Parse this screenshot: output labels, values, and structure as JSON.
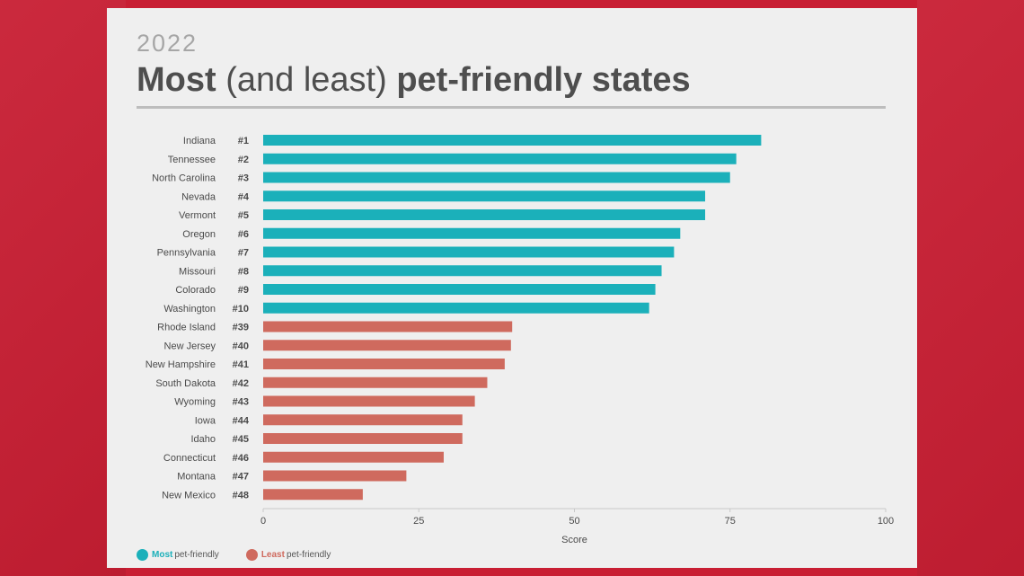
{
  "header": {
    "year": "2022",
    "title_most": "Most",
    "title_middle": "(and least)",
    "title_end": "pet-friendly states"
  },
  "legend": {
    "most_strong": "Most",
    "least_strong": "Least",
    "suffix": "pet-friendly"
  },
  "colors": {
    "most": "#1bb0ba",
    "least": "#cf6a5e",
    "label": "#4a4a4a",
    "axis": "#c8c8c8"
  },
  "chart_data": {
    "type": "bar",
    "orientation": "horizontal",
    "title": "Most (and least) pet-friendly states",
    "subtitle": "2022",
    "xlabel": "Score",
    "ylabel": "",
    "xlim": [
      0,
      100
    ],
    "xticks": [
      0,
      25,
      50,
      75,
      100
    ],
    "grid": false,
    "legend_position": "bottom-left",
    "series": [
      {
        "name": "Most pet-friendly",
        "categories": [
          "Indiana",
          "Tennessee",
          "North Carolina",
          "Nevada",
          "Vermont",
          "Oregon",
          "Pennsylvania",
          "Missouri",
          "Colorado",
          "Washington"
        ],
        "ranks": [
          "#1",
          "#2",
          "#3",
          "#4",
          "#5",
          "#6",
          "#7",
          "#8",
          "#9",
          "#10"
        ],
        "values": [
          80,
          76,
          75,
          71,
          71,
          67,
          66,
          64,
          63,
          62
        ]
      },
      {
        "name": "Least pet-friendly",
        "categories": [
          "Rhode Island",
          "New Jersey",
          "New Hampshire",
          "South Dakota",
          "Wyoming",
          "Iowa",
          "Idaho",
          "Connecticut",
          "Montana",
          "New Mexico"
        ],
        "ranks": [
          "#39",
          "#40",
          "#41",
          "#42",
          "#43",
          "#44",
          "#45",
          "#46",
          "#47",
          "#48"
        ],
        "values": [
          40,
          39.8,
          38.8,
          36,
          34,
          32,
          32,
          29,
          23,
          16
        ]
      }
    ]
  }
}
